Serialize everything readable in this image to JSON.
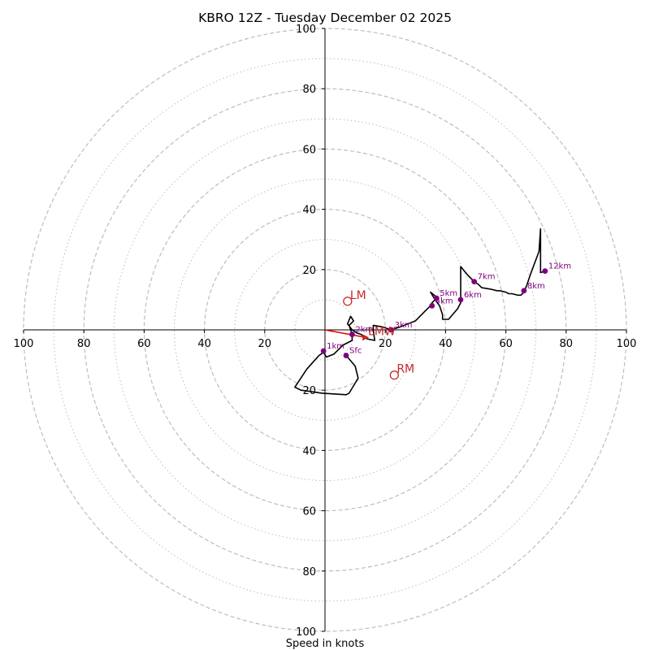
{
  "chart_data": {
    "type": "line",
    "subtype": "hodograph",
    "title": "KBRO 12Z - Tuesday December 02 2025",
    "xlabel": "Speed in knots",
    "ylabel": "",
    "xlim": [
      -100,
      100
    ],
    "ylim": [
      -100,
      100
    ],
    "rings_major": [
      20,
      40,
      60,
      80,
      100
    ],
    "rings_minor": [
      10,
      30,
      50,
      70,
      90
    ],
    "tick_labels": {
      "right": [
        "20",
        "40",
        "60",
        "80",
        "100"
      ],
      "left": [
        "20",
        "40",
        "60",
        "80",
        "100"
      ],
      "top": [
        "20",
        "40",
        "60",
        "80",
        "100"
      ],
      "bottom": [
        "20",
        "40",
        "60",
        "80",
        "100"
      ]
    },
    "series": [
      {
        "name": "hodograph",
        "color": "#000000",
        "points": [
          [
            7,
            -8.5
          ],
          [
            10,
            -12
          ],
          [
            11,
            -16
          ],
          [
            8,
            -21
          ],
          [
            7,
            -21.5
          ],
          [
            -1,
            -21
          ],
          [
            -8,
            -20
          ],
          [
            -10,
            -19
          ],
          [
            -9,
            -17.5
          ],
          [
            -6,
            -13
          ],
          [
            -2,
            -8.5
          ],
          [
            -0.5,
            -7.5
          ],
          [
            0.5,
            -9
          ],
          [
            3,
            -8
          ],
          [
            6,
            -5
          ],
          [
            9,
            -3.5
          ],
          [
            9,
            -1.5
          ],
          [
            8,
            1.5
          ],
          [
            9.5,
            3
          ],
          [
            8.5,
            4.5
          ],
          [
            7.5,
            2
          ],
          [
            9,
            0
          ],
          [
            10.5,
            -1
          ],
          [
            12,
            -1.5
          ],
          [
            14,
            -3
          ],
          [
            16.5,
            -3.5
          ],
          [
            16,
            0
          ],
          [
            16,
            1.5
          ],
          [
            19,
            1
          ],
          [
            22,
            0
          ],
          [
            25,
            1
          ],
          [
            30,
            3
          ],
          [
            33,
            6
          ],
          [
            35,
            8
          ],
          [
            35.5,
            9
          ],
          [
            36.5,
            10
          ],
          [
            37.5,
            10.5
          ],
          [
            35,
            12.5
          ],
          [
            36.5,
            10
          ],
          [
            38,
            8
          ],
          [
            39,
            5
          ],
          [
            39,
            3.5
          ],
          [
            41,
            3.5
          ],
          [
            44,
            7
          ],
          [
            45,
            9
          ],
          [
            45,
            21
          ],
          [
            47.5,
            18
          ],
          [
            49.5,
            16
          ],
          [
            51,
            15
          ],
          [
            52,
            14
          ],
          [
            55,
            13.5
          ],
          [
            57,
            13
          ],
          [
            58,
            13
          ],
          [
            60,
            12.5
          ],
          [
            61,
            12
          ],
          [
            62,
            12
          ],
          [
            64,
            11.5
          ],
          [
            65,
            11.5
          ],
          [
            66,
            12.5
          ],
          [
            67,
            15
          ],
          [
            68,
            18
          ],
          [
            69.5,
            22
          ],
          [
            71,
            26
          ],
          [
            71.5,
            33.5
          ],
          [
            71.5,
            19
          ],
          [
            73,
            19.5
          ]
        ]
      }
    ],
    "height_markers": [
      {
        "label": "Sfc",
        "x": 7,
        "y": -8.5
      },
      {
        "label": "1km",
        "x": -0.5,
        "y": -7
      },
      {
        "label": "2km",
        "x": 9,
        "y": -1.5
      },
      {
        "label": "3km",
        "x": 22,
        "y": 0
      },
      {
        "label": "4km",
        "x": 35.5,
        "y": 8
      },
      {
        "label": "5km",
        "x": 37,
        "y": 10.5
      },
      {
        "label": "6km",
        "x": 45,
        "y": 10
      },
      {
        "label": "7km",
        "x": 49.5,
        "y": 16
      },
      {
        "label": "8km",
        "x": 66,
        "y": 13
      },
      {
        "label": "12km",
        "x": 73,
        "y": 19.5
      }
    ],
    "storm_motions": [
      {
        "label": "LM",
        "x": 7.5,
        "y": 9.5
      },
      {
        "label": "RM",
        "x": 23,
        "y": -15
      },
      {
        "label": "LMW",
        "x": 13.5,
        "y": -2.5
      }
    ],
    "shear_vector": {
      "from": [
        0,
        0
      ],
      "to": [
        13.5,
        -2.5
      ],
      "color": "#e00000"
    },
    "colors": {
      "hodograph": "#000000",
      "height_marker": "#800080",
      "storm_motion": "#c62828",
      "shear": "#e00000",
      "grid": "#bdbdbd"
    }
  }
}
